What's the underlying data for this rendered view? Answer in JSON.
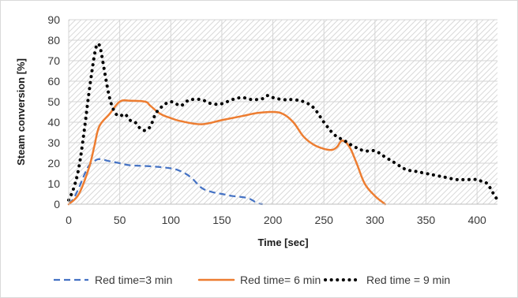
{
  "chart_data": {
    "type": "line",
    "title": "",
    "xlabel": "Time [sec]",
    "ylabel": "Steam conversion [%]",
    "xlim": [
      0,
      420
    ],
    "ylim": [
      0,
      90
    ],
    "x_ticks": [
      0,
      50,
      100,
      150,
      200,
      250,
      300,
      350,
      400
    ],
    "y_ticks": [
      0,
      10,
      20,
      30,
      40,
      50,
      60,
      70,
      80,
      90
    ],
    "grid": true,
    "plot_background": "hatched-gray",
    "legend_position": "bottom",
    "series": [
      {
        "name": "Red time=3 min",
        "color": "#4472C4",
        "style": "dashed",
        "points": [
          [
            0,
            0
          ],
          [
            5,
            3
          ],
          [
            10,
            8
          ],
          [
            15,
            14
          ],
          [
            20,
            19
          ],
          [
            25,
            21
          ],
          [
            30,
            22
          ],
          [
            40,
            21
          ],
          [
            50,
            20
          ],
          [
            60,
            19
          ],
          [
            80,
            18.5
          ],
          [
            100,
            17.5
          ],
          [
            110,
            16
          ],
          [
            120,
            13
          ],
          [
            130,
            8
          ],
          [
            140,
            6
          ],
          [
            150,
            5
          ],
          [
            160,
            4
          ],
          [
            175,
            3
          ],
          [
            185,
            0.5
          ],
          [
            190,
            0
          ]
        ]
      },
      {
        "name": "Red time= 6 min",
        "color": "#ED7D31",
        "style": "solid",
        "points": [
          [
            0,
            0
          ],
          [
            10,
            5
          ],
          [
            20,
            18
          ],
          [
            25,
            28
          ],
          [
            30,
            38
          ],
          [
            40,
            44
          ],
          [
            50,
            50
          ],
          [
            60,
            50.5
          ],
          [
            75,
            50
          ],
          [
            80,
            48
          ],
          [
            90,
            44
          ],
          [
            100,
            42
          ],
          [
            110,
            40.5
          ],
          [
            130,
            39
          ],
          [
            150,
            41
          ],
          [
            170,
            43
          ],
          [
            185,
            44.5
          ],
          [
            200,
            45
          ],
          [
            210,
            44
          ],
          [
            220,
            40
          ],
          [
            230,
            33
          ],
          [
            240,
            29
          ],
          [
            250,
            27
          ],
          [
            258,
            26.5
          ],
          [
            263,
            28
          ],
          [
            268,
            31
          ],
          [
            275,
            28
          ],
          [
            282,
            20
          ],
          [
            290,
            10
          ],
          [
            300,
            4
          ],
          [
            310,
            0
          ]
        ]
      },
      {
        "name": "Red time = 9 min",
        "color": "#000000",
        "style": "dotted",
        "points": [
          [
            0,
            2
          ],
          [
            5,
            8
          ],
          [
            10,
            18
          ],
          [
            15,
            35
          ],
          [
            20,
            55
          ],
          [
            25,
            72
          ],
          [
            28,
            78
          ],
          [
            31,
            76
          ],
          [
            35,
            65
          ],
          [
            40,
            52
          ],
          [
            45,
            45
          ],
          [
            50,
            43
          ],
          [
            55,
            44
          ],
          [
            60,
            41
          ],
          [
            65,
            40
          ],
          [
            70,
            37
          ],
          [
            75,
            36
          ],
          [
            80,
            38
          ],
          [
            85,
            44
          ],
          [
            90,
            47
          ],
          [
            95,
            49
          ],
          [
            100,
            50
          ],
          [
            105,
            49
          ],
          [
            110,
            48
          ],
          [
            115,
            50
          ],
          [
            120,
            51
          ],
          [
            130,
            51
          ],
          [
            140,
            49
          ],
          [
            150,
            49
          ],
          [
            160,
            51
          ],
          [
            170,
            52
          ],
          [
            180,
            51
          ],
          [
            190,
            51.5
          ],
          [
            195,
            53
          ],
          [
            200,
            52
          ],
          [
            210,
            51
          ],
          [
            220,
            51
          ],
          [
            230,
            50
          ],
          [
            240,
            47
          ],
          [
            250,
            40
          ],
          [
            260,
            34
          ],
          [
            270,
            31
          ],
          [
            280,
            28
          ],
          [
            290,
            26
          ],
          [
            300,
            26
          ],
          [
            310,
            23
          ],
          [
            320,
            20
          ],
          [
            330,
            17
          ],
          [
            340,
            16
          ],
          [
            350,
            15
          ],
          [
            360,
            14
          ],
          [
            370,
            13
          ],
          [
            380,
            12
          ],
          [
            390,
            12
          ],
          [
            400,
            12
          ],
          [
            405,
            11
          ],
          [
            410,
            10
          ],
          [
            415,
            6
          ],
          [
            420,
            2
          ]
        ]
      }
    ]
  }
}
